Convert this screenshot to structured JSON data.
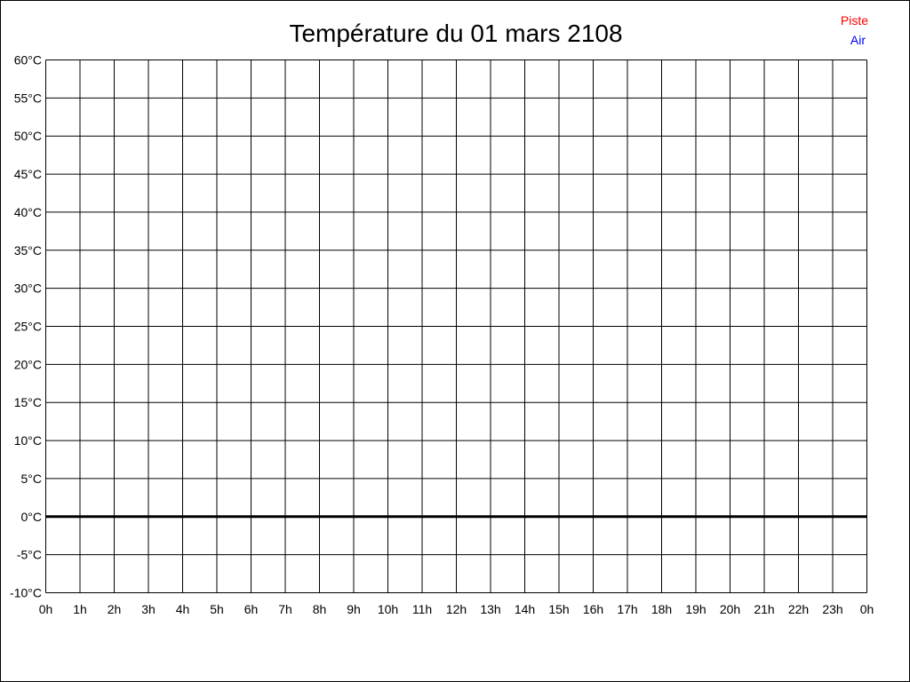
{
  "chart_data": {
    "type": "line",
    "title": "Température du 01 mars 2108",
    "xlabel": "",
    "ylabel": "",
    "x_ticks": [
      "0h",
      "1h",
      "2h",
      "3h",
      "4h",
      "5h",
      "6h",
      "7h",
      "8h",
      "9h",
      "10h",
      "11h",
      "12h",
      "13h",
      "14h",
      "15h",
      "16h",
      "17h",
      "18h",
      "19h",
      "20h",
      "21h",
      "22h",
      "23h",
      "0h"
    ],
    "y_ticks": [
      "-10°C",
      "-5°C",
      "0°C",
      "5°C",
      "10°C",
      "15°C",
      "20°C",
      "25°C",
      "30°C",
      "35°C",
      "40°C",
      "45°C",
      "50°C",
      "55°C",
      "60°C"
    ],
    "xlim": [
      0,
      24
    ],
    "ylim": [
      -10,
      60
    ],
    "grid": true,
    "legend_placement": "top-right",
    "series": [
      {
        "name": "Piste",
        "color": "#ff0000",
        "values": []
      },
      {
        "name": "Air",
        "color": "#0000ff",
        "values": []
      }
    ]
  }
}
